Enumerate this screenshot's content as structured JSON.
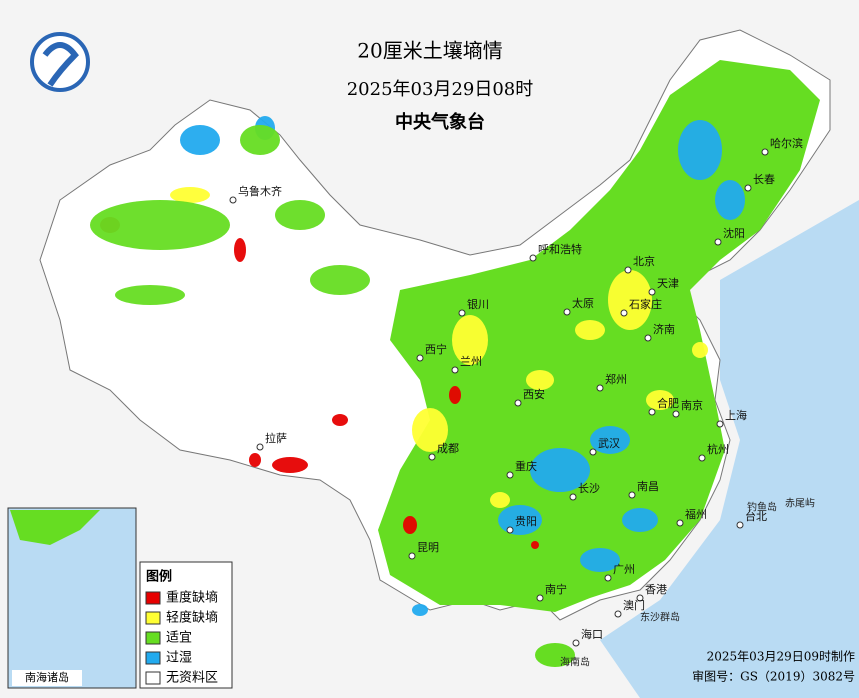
{
  "header": {
    "title": "20厘米土壤墒情",
    "datetime": "2025年03月29日08时",
    "agency": "中央气象台"
  },
  "legend": {
    "title": "图例",
    "items": [
      {
        "label": "重度缺墒",
        "color": "#e60000"
      },
      {
        "label": "轻度缺墒",
        "color": "#ffff33"
      },
      {
        "label": "适宜",
        "color": "#66dd22"
      },
      {
        "label": "过湿",
        "color": "#22aaee"
      },
      {
        "label": "无资料区",
        "color": "#ffffff"
      }
    ]
  },
  "cities": [
    "乌鲁木齐",
    "呼和浩特",
    "哈尔滨",
    "长春",
    "沈阳",
    "北京",
    "天津",
    "石家庄",
    "太原",
    "济南",
    "银川",
    "西宁",
    "兰州",
    "西安",
    "郑州",
    "合肥",
    "南京",
    "上海",
    "杭州",
    "武汉",
    "成都",
    "重庆",
    "长沙",
    "南昌",
    "福州",
    "台北",
    "贵阳",
    "昆明",
    "南宁",
    "广州",
    "香港",
    "澳门",
    "海口",
    "拉萨"
  ],
  "places": [
    "钓鱼岛",
    "赤尾屿",
    "东沙群岛",
    "海南岛"
  ],
  "inset": {
    "title": "南海诸岛"
  },
  "footer": {
    "production": "2025年03月29日09时制作",
    "approval": "审图号：GS（2019）3082号"
  }
}
